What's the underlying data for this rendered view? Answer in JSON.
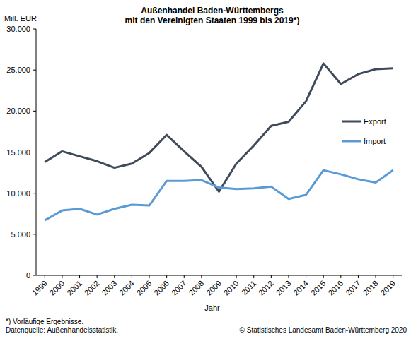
{
  "chart_data": {
    "type": "line",
    "title": "Außenhandel Baden-Württembergs",
    "subtitle": "mit den Vereinigten Staaten 1999 bis 2019*)",
    "y_label": "Mill. EUR",
    "x_label": "Jahr",
    "footnotes": [
      "*) Vorläufige Ergebnisse.",
      "Datenquelle: Außenhandelsstatistik."
    ],
    "credit": "© Statistisches Landesamt Baden-Württemberg 2020",
    "categories": [
      "1999",
      "2000",
      "2001",
      "2002",
      "2003",
      "2004",
      "2005",
      "2006",
      "2007",
      "2008",
      "2009",
      "2010",
      "2011",
      "2012",
      "2013",
      "2014",
      "2015",
      "2016",
      "2017",
      "2018",
      "2019"
    ],
    "series": [
      {
        "name": "Export",
        "color": "#3f4a5b",
        "values": [
          13800,
          15100,
          14500,
          13900,
          13100,
          13600,
          14900,
          17100,
          15100,
          13200,
          10200,
          13600,
          15800,
          18200,
          18700,
          21200,
          25800,
          23300,
          24500,
          25100,
          25200
        ]
      },
      {
        "name": "Import",
        "color": "#5b9bd5",
        "values": [
          6700,
          7900,
          8100,
          7400,
          8100,
          8600,
          8500,
          11500,
          11500,
          11600,
          10700,
          10500,
          10600,
          10800,
          9300,
          9800,
          12800,
          12300,
          11700,
          11300,
          12800
        ]
      }
    ],
    "ylim": [
      0,
      30000
    ],
    "yticks": [
      0,
      {
        "value": 5000,
        "label": "5.000"
      },
      {
        "value": 10000,
        "label": "10.000"
      },
      {
        "value": 15000,
        "label": "15.000"
      },
      {
        "value": 20000,
        "label": "20.000"
      },
      {
        "value": 25000,
        "label": "25.000"
      },
      {
        "value": 30000,
        "label": "30.000"
      }
    ],
    "grid": false,
    "legend": "right"
  }
}
